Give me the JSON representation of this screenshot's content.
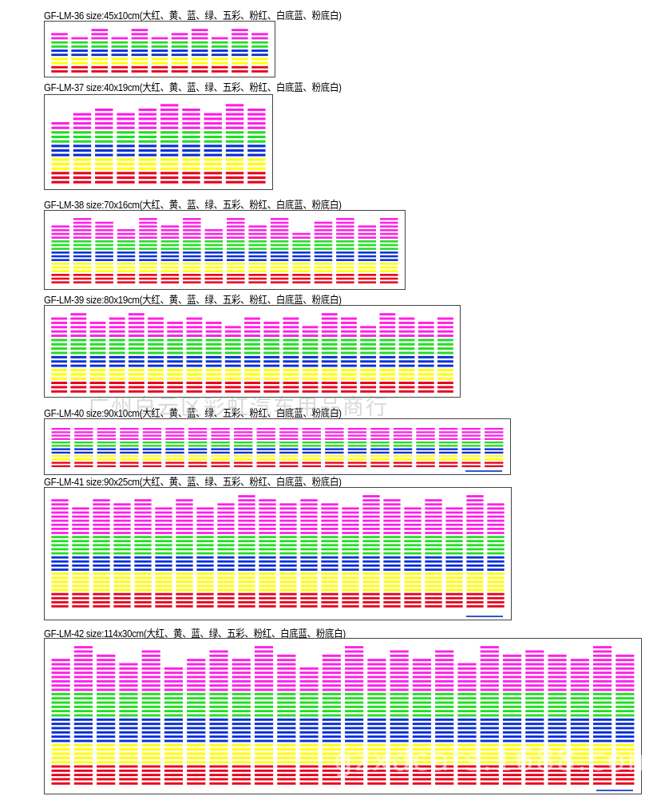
{
  "colors": {
    "red": "#e8001c",
    "yellow": "#ffff00",
    "blue": "#0a2fd6",
    "green": "#22dd22",
    "magenta": "#ff1fe6"
  },
  "models": [
    {
      "title": "GF-LM-36 size:45x10cm(大红、黄、蓝、绿、五彩、粉红、白底蓝、粉底白)",
      "bars": 11,
      "heights": [
        10,
        9,
        11,
        9,
        11,
        9,
        10,
        11,
        9,
        11,
        10
      ]
    },
    {
      "title": "GF-LM-37 size:40x19cm(大红、黄、蓝、绿、五彩、粉红、白底蓝、粉底白)",
      "bars": 10,
      "heights": [
        14,
        16,
        17,
        16,
        17,
        18,
        17,
        16,
        18,
        17
      ]
    },
    {
      "title": "GF-LM-38 size:70x16cm(大红、黄、蓝、绿、五彩、粉红、白底蓝、粉底白)",
      "bars": 16,
      "heights": [
        16,
        18,
        17,
        15,
        18,
        16,
        18,
        15,
        18,
        16,
        18,
        14,
        17,
        18,
        16,
        18
      ]
    },
    {
      "title": "GF-LM-39 size:80x19cm(大红、黄、蓝、绿、五彩、粉红、白底蓝、粉底白)",
      "bars": 21,
      "heights": [
        18,
        19,
        17,
        18,
        19,
        18,
        17,
        18,
        17,
        16,
        18,
        17,
        18,
        16,
        19,
        18,
        16,
        19,
        18,
        17,
        18
      ]
    },
    {
      "title": "GF-LM-40 size:90x10cm(大红、黄、蓝、绿、五彩、粉红、白底蓝、粉底白)",
      "bars": 20,
      "heights": [
        12,
        12,
        12,
        12,
        12,
        12,
        12,
        12,
        12,
        12,
        12,
        12,
        12,
        12,
        12,
        12,
        12,
        12,
        12,
        12
      ]
    },
    {
      "title": "GF-LM-41 size:90x25cm(大红、黄、蓝、绿、五彩、粉红、白底蓝、粉底白)",
      "bars": 22,
      "heights": [
        27,
        25,
        27,
        26,
        27,
        25,
        27,
        25,
        26,
        28,
        27,
        26,
        27,
        26,
        25,
        28,
        27,
        25,
        27,
        25,
        28,
        26
      ]
    },
    {
      "title": "GF-LM-42 size:114x30cm(大红、黄、蓝、绿、五彩、粉红、白底蓝、粉底白)",
      "bars": 26,
      "heights": [
        30,
        33,
        31,
        29,
        32,
        28,
        30,
        32,
        30,
        33,
        31,
        28,
        31,
        33,
        30,
        32,
        30,
        32,
        29,
        33,
        31,
        32,
        31,
        30,
        33,
        31
      ]
    }
  ],
  "watermarks": {
    "shop": "广州白云区彩虹汽车用品商行",
    "url": "gzxdcars.1688.com"
  }
}
